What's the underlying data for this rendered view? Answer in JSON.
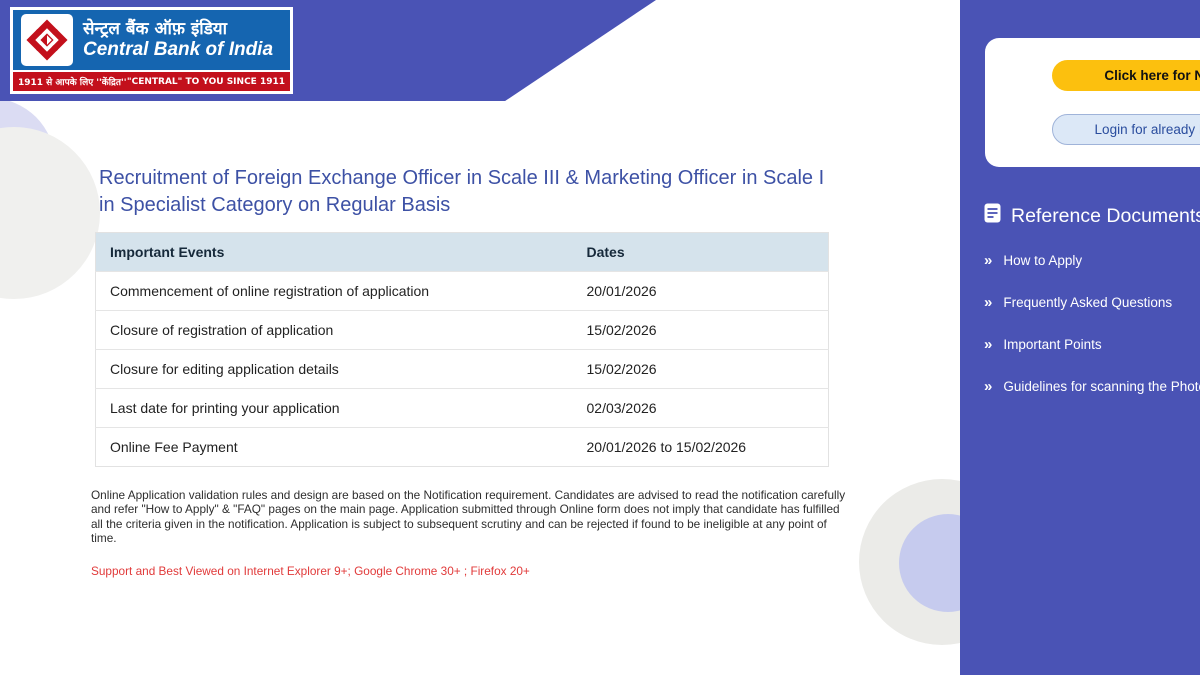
{
  "logo": {
    "hindi_name": "सेन्ट्रल बैंक ऑफ़ इंडिया",
    "english_name": "Central Bank of India",
    "tagline_hindi": "1911 से आपके लिए ''केंद्रित''",
    "tagline_english": "\"CENTRAL\" TO YOU SINCE 1911"
  },
  "main": {
    "title_lines": [
      "Recruitment of Foreign Exchange Officer in Scale III & Marketing Officer in Scale I",
      "in Specialist Category on Regular Basis"
    ],
    "table": {
      "headers": [
        "Important Events",
        "Dates"
      ],
      "rows": [
        [
          "Commencement of online registration of application",
          "20/01/2026"
        ],
        [
          "Closure of registration of application",
          "15/02/2026"
        ],
        [
          "Closure for editing application details",
          "15/02/2026"
        ],
        [
          "Last date for printing your application",
          "02/03/2026"
        ],
        [
          "Online Fee Payment",
          "20/01/2026 to 15/02/2026"
        ]
      ]
    },
    "note": "Online Application validation rules and design are based on the Notification requirement. Candidates are advised to read the notification carefully and refer \"How to Apply\" & \"FAQ\" pages on the main page. Application submitted through Online form does not imply that candidate has fulfilled all the criteria given in the notification. Application is subject to subsequent scrutiny and can be rejected if found to be ineligible at any point of time.",
    "support_note": "Support and Best Viewed on Internet Explorer 9+; Google Chrome 30+ ; Firefox 20+"
  },
  "sidebar": {
    "register_button": "Click here for New Registration",
    "login_button": "Login for already Registered Candidate",
    "reference_title": "Reference Documents",
    "items": [
      {
        "label": "How to Apply"
      },
      {
        "label": "Frequently Asked Questions"
      },
      {
        "label": "Important Points"
      },
      {
        "label": "Guidelines for scanning the Photograph"
      }
    ]
  },
  "colors": {
    "sidebar_indigo": "#4a53b5",
    "logo_blue": "#1565b0",
    "logo_red": "#c3101c",
    "register_yellow": "#fcc00e",
    "login_blue_bg": "#dce8f7",
    "table_header_bg": "#d5e3ec",
    "title_indigo": "#3d51a5",
    "support_red": "#e13a3a"
  }
}
